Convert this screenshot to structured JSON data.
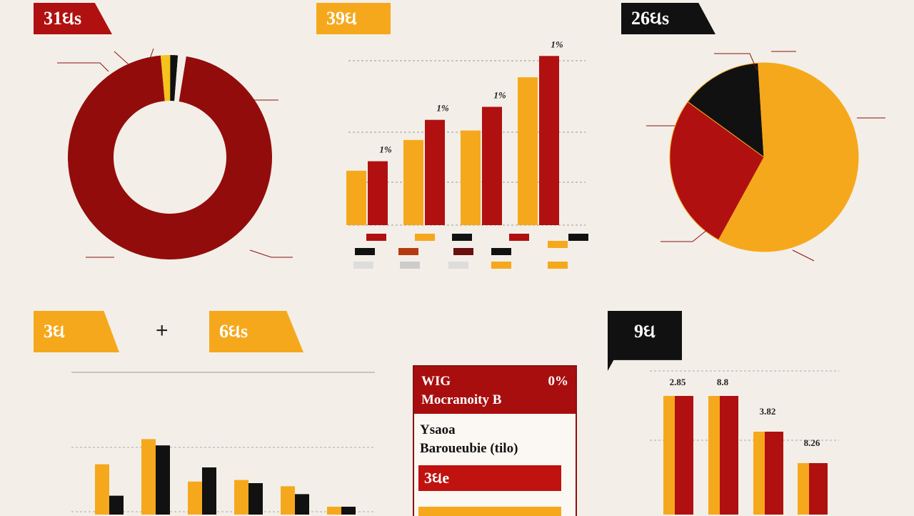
{
  "tags": {
    "t1": "31ઘs",
    "t2": "39ઘ",
    "t3": "26ઘs",
    "t4": "3ઘ",
    "t5": "6ઘs",
    "t6": "9ઘ"
  },
  "plus": "+",
  "panel": {
    "head_left": "WIG",
    "head_right": "0%",
    "head_line2": "Mocranoity B",
    "line1": "Ysaoa",
    "line2": "Baroueubie (tilo)",
    "bar1": "3ઘe",
    "bar2": ""
  },
  "colors": {
    "red": "#b01010",
    "dark_red": "#930c0c",
    "gold": "#f6a81c",
    "black": "#111111",
    "background": "#f3efe8"
  },
  "chart_data": [
    {
      "type": "pie",
      "name": "donut",
      "values": [
        96,
        1.5,
        1.2,
        1.3
      ],
      "colors": [
        "#930c0c",
        "#f6c21c",
        "#111111",
        "#f3efe8"
      ],
      "labels": [
        "",
        "",
        "",
        ""
      ]
    },
    {
      "type": "bar",
      "name": "top-bar-chart",
      "categories": [
        "",
        "",
        "",
        ""
      ],
      "series": [
        {
          "values": [
            46,
            72,
            80,
            125
          ],
          "color": "#f6a81c"
        },
        {
          "values": [
            54,
            89,
            100,
            143
          ],
          "color": "#b01010"
        }
      ],
      "data_labels": [
        "1%",
        "1%",
        "1%",
        "1%"
      ],
      "ylim": [
        0,
        145
      ],
      "grid": true
    },
    {
      "type": "pie",
      "name": "right-pie",
      "values": [
        58,
        27,
        14,
        1
      ],
      "colors": [
        "#f6a81c",
        "#b01010",
        "#111111",
        "#f6a81c"
      ],
      "labels": [
        "",
        "",
        "",
        ""
      ]
    },
    {
      "type": "bar",
      "name": "bottom-left-bar-chart",
      "categories": [
        "",
        "",
        "",
        "",
        "",
        ""
      ],
      "series": [
        {
          "values": [
            32,
            48,
            21,
            22,
            18,
            5
          ],
          "color": "#f6a81c"
        },
        {
          "values": [
            12,
            44,
            30,
            20,
            13,
            5
          ],
          "color": "#111111"
        }
      ],
      "ylim": [
        0,
        50
      ],
      "grid": true
    },
    {
      "type": "bar",
      "name": "bottom-right-bar-chart",
      "categories": [
        "",
        "",
        "",
        ""
      ],
      "series": [
        {
          "values": [
            166,
            166,
            116,
            72
          ],
          "color": "#f6a81c"
        },
        {
          "values": [
            166,
            166,
            116,
            72
          ],
          "color": "#b01010"
        }
      ],
      "data_labels": [
        "2.85",
        "8.8",
        "3.82",
        "8.26"
      ],
      "ylim": [
        0,
        200
      ],
      "grid": true
    }
  ]
}
